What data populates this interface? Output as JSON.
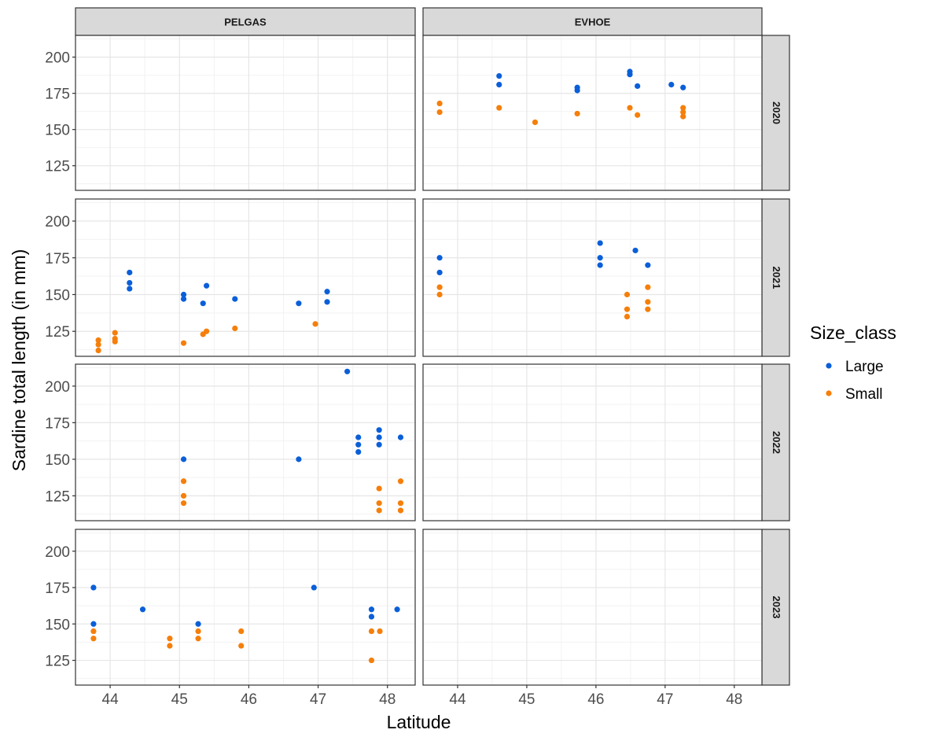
{
  "chart_data": {
    "type": "scatter",
    "xlabel": "Latitude",
    "ylabel": "Sardine total length (in mm)",
    "facet_columns": [
      "PELGAS",
      "EVHOE"
    ],
    "facet_rows": [
      "2020",
      "2021",
      "2022",
      "2023"
    ],
    "xlim": [
      43.5,
      48.4
    ],
    "ylim": [
      108,
      215
    ],
    "x_ticks": [
      44,
      45,
      46,
      47,
      48
    ],
    "y_ticks": [
      125,
      150,
      175,
      200
    ],
    "grid": true,
    "legend": {
      "title": "Size_class",
      "placement": "right",
      "entries": [
        {
          "label": "Large",
          "color": "#0a5fd9"
        },
        {
          "label": "Small",
          "color": "#f57f0a"
        }
      ]
    },
    "panels": [
      {
        "survey": "PELGAS",
        "year": "2020",
        "points": []
      },
      {
        "survey": "EVHOE",
        "year": "2020",
        "points": [
          {
            "x": 43.74,
            "y": 168,
            "size_class": "Small"
          },
          {
            "x": 43.74,
            "y": 162,
            "size_class": "Small"
          },
          {
            "x": 44.6,
            "y": 187,
            "size_class": "Large"
          },
          {
            "x": 44.6,
            "y": 181,
            "size_class": "Large"
          },
          {
            "x": 44.6,
            "y": 165,
            "size_class": "Small"
          },
          {
            "x": 45.12,
            "y": 155,
            "size_class": "Small"
          },
          {
            "x": 45.73,
            "y": 179,
            "size_class": "Large"
          },
          {
            "x": 45.73,
            "y": 177,
            "size_class": "Large"
          },
          {
            "x": 45.73,
            "y": 161,
            "size_class": "Small"
          },
          {
            "x": 46.49,
            "y": 190,
            "size_class": "Large"
          },
          {
            "x": 46.49,
            "y": 188,
            "size_class": "Large"
          },
          {
            "x": 46.49,
            "y": 165,
            "size_class": "Small"
          },
          {
            "x": 46.6,
            "y": 180,
            "size_class": "Large"
          },
          {
            "x": 46.6,
            "y": 160,
            "size_class": "Small"
          },
          {
            "x": 47.09,
            "y": 181,
            "size_class": "Large"
          },
          {
            "x": 47.26,
            "y": 179,
            "size_class": "Large"
          },
          {
            "x": 47.26,
            "y": 165,
            "size_class": "Small"
          },
          {
            "x": 47.26,
            "y": 162,
            "size_class": "Small"
          },
          {
            "x": 47.26,
            "y": 159,
            "size_class": "Small"
          }
        ]
      },
      {
        "survey": "PELGAS",
        "year": "2021",
        "points": [
          {
            "x": 43.83,
            "y": 119,
            "size_class": "Small"
          },
          {
            "x": 43.83,
            "y": 116,
            "size_class": "Small"
          },
          {
            "x": 43.83,
            "y": 112,
            "size_class": "Small"
          },
          {
            "x": 44.07,
            "y": 124,
            "size_class": "Small"
          },
          {
            "x": 44.07,
            "y": 120,
            "size_class": "Small"
          },
          {
            "x": 44.07,
            "y": 118,
            "size_class": "Small"
          },
          {
            "x": 44.28,
            "y": 165,
            "size_class": "Large"
          },
          {
            "x": 44.28,
            "y": 158,
            "size_class": "Large"
          },
          {
            "x": 44.28,
            "y": 154,
            "size_class": "Large"
          },
          {
            "x": 45.06,
            "y": 150,
            "size_class": "Large"
          },
          {
            "x": 45.06,
            "y": 147,
            "size_class": "Large"
          },
          {
            "x": 45.06,
            "y": 117,
            "size_class": "Small"
          },
          {
            "x": 45.34,
            "y": 144,
            "size_class": "Large"
          },
          {
            "x": 45.34,
            "y": 123,
            "size_class": "Small"
          },
          {
            "x": 45.39,
            "y": 156,
            "size_class": "Large"
          },
          {
            "x": 45.39,
            "y": 125,
            "size_class": "Small"
          },
          {
            "x": 45.8,
            "y": 147,
            "size_class": "Large"
          },
          {
            "x": 45.8,
            "y": 127,
            "size_class": "Small"
          },
          {
            "x": 46.72,
            "y": 144,
            "size_class": "Large"
          },
          {
            "x": 46.96,
            "y": 130,
            "size_class": "Small"
          },
          {
            "x": 47.13,
            "y": 152,
            "size_class": "Large"
          },
          {
            "x": 47.13,
            "y": 145,
            "size_class": "Large"
          }
        ]
      },
      {
        "survey": "EVHOE",
        "year": "2021",
        "points": [
          {
            "x": 43.74,
            "y": 175,
            "size_class": "Large"
          },
          {
            "x": 43.74,
            "y": 165,
            "size_class": "Large"
          },
          {
            "x": 43.74,
            "y": 155,
            "size_class": "Small"
          },
          {
            "x": 43.74,
            "y": 150,
            "size_class": "Small"
          },
          {
            "x": 46.06,
            "y": 185,
            "size_class": "Large"
          },
          {
            "x": 46.06,
            "y": 175,
            "size_class": "Large"
          },
          {
            "x": 46.06,
            "y": 170,
            "size_class": "Large"
          },
          {
            "x": 46.45,
            "y": 150,
            "size_class": "Small"
          },
          {
            "x": 46.45,
            "y": 140,
            "size_class": "Small"
          },
          {
            "x": 46.45,
            "y": 135,
            "size_class": "Small"
          },
          {
            "x": 46.57,
            "y": 180,
            "size_class": "Large"
          },
          {
            "x": 46.75,
            "y": 170,
            "size_class": "Large"
          },
          {
            "x": 46.75,
            "y": 155,
            "size_class": "Small"
          },
          {
            "x": 46.75,
            "y": 145,
            "size_class": "Small"
          },
          {
            "x": 46.75,
            "y": 140,
            "size_class": "Small"
          }
        ]
      },
      {
        "survey": "PELGAS",
        "year": "2022",
        "points": [
          {
            "x": 45.06,
            "y": 150,
            "size_class": "Large"
          },
          {
            "x": 45.06,
            "y": 135,
            "size_class": "Small"
          },
          {
            "x": 45.06,
            "y": 125,
            "size_class": "Small"
          },
          {
            "x": 45.06,
            "y": 120,
            "size_class": "Small"
          },
          {
            "x": 46.72,
            "y": 150,
            "size_class": "Large"
          },
          {
            "x": 47.42,
            "y": 210,
            "size_class": "Large"
          },
          {
            "x": 47.58,
            "y": 165,
            "size_class": "Large"
          },
          {
            "x": 47.58,
            "y": 160,
            "size_class": "Large"
          },
          {
            "x": 47.58,
            "y": 155,
            "size_class": "Large"
          },
          {
            "x": 47.88,
            "y": 170,
            "size_class": "Large"
          },
          {
            "x": 47.88,
            "y": 165,
            "size_class": "Large"
          },
          {
            "x": 47.88,
            "y": 160,
            "size_class": "Large"
          },
          {
            "x": 47.88,
            "y": 130,
            "size_class": "Small"
          },
          {
            "x": 47.88,
            "y": 120,
            "size_class": "Small"
          },
          {
            "x": 47.88,
            "y": 115,
            "size_class": "Small"
          },
          {
            "x": 48.19,
            "y": 165,
            "size_class": "Large"
          },
          {
            "x": 48.19,
            "y": 135,
            "size_class": "Small"
          },
          {
            "x": 48.19,
            "y": 120,
            "size_class": "Small"
          },
          {
            "x": 48.19,
            "y": 115,
            "size_class": "Small"
          }
        ]
      },
      {
        "survey": "EVHOE",
        "year": "2022",
        "points": []
      },
      {
        "survey": "PELGAS",
        "year": "2023",
        "points": [
          {
            "x": 43.76,
            "y": 175,
            "size_class": "Large"
          },
          {
            "x": 43.76,
            "y": 150,
            "size_class": "Large"
          },
          {
            "x": 43.76,
            "y": 145,
            "size_class": "Small"
          },
          {
            "x": 43.76,
            "y": 140,
            "size_class": "Small"
          },
          {
            "x": 44.47,
            "y": 160,
            "size_class": "Large"
          },
          {
            "x": 44.86,
            "y": 140,
            "size_class": "Small"
          },
          {
            "x": 44.86,
            "y": 135,
            "size_class": "Small"
          },
          {
            "x": 45.27,
            "y": 150,
            "size_class": "Large"
          },
          {
            "x": 45.27,
            "y": 145,
            "size_class": "Small"
          },
          {
            "x": 45.27,
            "y": 140,
            "size_class": "Small"
          },
          {
            "x": 45.89,
            "y": 145,
            "size_class": "Small"
          },
          {
            "x": 45.89,
            "y": 135,
            "size_class": "Small"
          },
          {
            "x": 46.94,
            "y": 175,
            "size_class": "Large"
          },
          {
            "x": 47.77,
            "y": 160,
            "size_class": "Large"
          },
          {
            "x": 47.77,
            "y": 155,
            "size_class": "Large"
          },
          {
            "x": 47.77,
            "y": 145,
            "size_class": "Small"
          },
          {
            "x": 47.77,
            "y": 125,
            "size_class": "Small"
          },
          {
            "x": 47.89,
            "y": 145,
            "size_class": "Small"
          },
          {
            "x": 48.14,
            "y": 160,
            "size_class": "Large"
          }
        ]
      },
      {
        "survey": "EVHOE",
        "year": "2023",
        "points": []
      }
    ]
  }
}
